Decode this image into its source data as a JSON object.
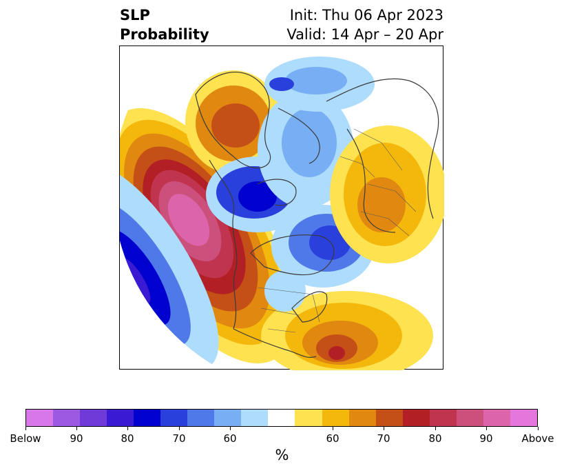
{
  "title": {
    "left_line1": "SLP",
    "left_line2": "Probability",
    "right_line1": "Init: Thu 06 Apr 2023",
    "right_line2": "Valid: 14 Apr – 20 Apr"
  },
  "colorbar": {
    "colors": [
      "#d877e8",
      "#9c59e2",
      "#6e3ad8",
      "#3a1bd3",
      "#0000cf",
      "#2a40dc",
      "#4f78e8",
      "#77aef4",
      "#aedcfc",
      "#ffffff",
      "#ffe24f",
      "#f4b80d",
      "#e08810",
      "#c45018",
      "#b21f24",
      "#c03450",
      "#cc507c",
      "#dc64aa",
      "#e476dc"
    ],
    "tick_labels": [
      "Below",
      "90",
      "80",
      "70",
      "60",
      "60",
      "70",
      "80",
      "90",
      "Above"
    ],
    "unit": "%"
  },
  "map": {
    "projection": "north-polar-stereographic",
    "field": "SLP probability",
    "features": [
      {
        "name": "above-north-pacific",
        "category": "Above",
        "color": "#dc64aa"
      },
      {
        "name": "above-western-north-atlantic",
        "category": "80",
        "color": "#b21f24"
      },
      {
        "name": "above-siberia",
        "category": "70",
        "color": "#c45018"
      },
      {
        "name": "above-europe",
        "category": "60",
        "color": "#f4b80d"
      },
      {
        "name": "below-gulf-of-alaska",
        "category": "90",
        "color": "#3a1bd3"
      },
      {
        "name": "below-alaska-chukchi",
        "category": "80",
        "color": "#0000cf"
      },
      {
        "name": "below-canadian-arctic",
        "category": "70",
        "color": "#2a40dc"
      },
      {
        "name": "below-ural-region",
        "category": "60",
        "color": "#77aef4"
      }
    ]
  }
}
